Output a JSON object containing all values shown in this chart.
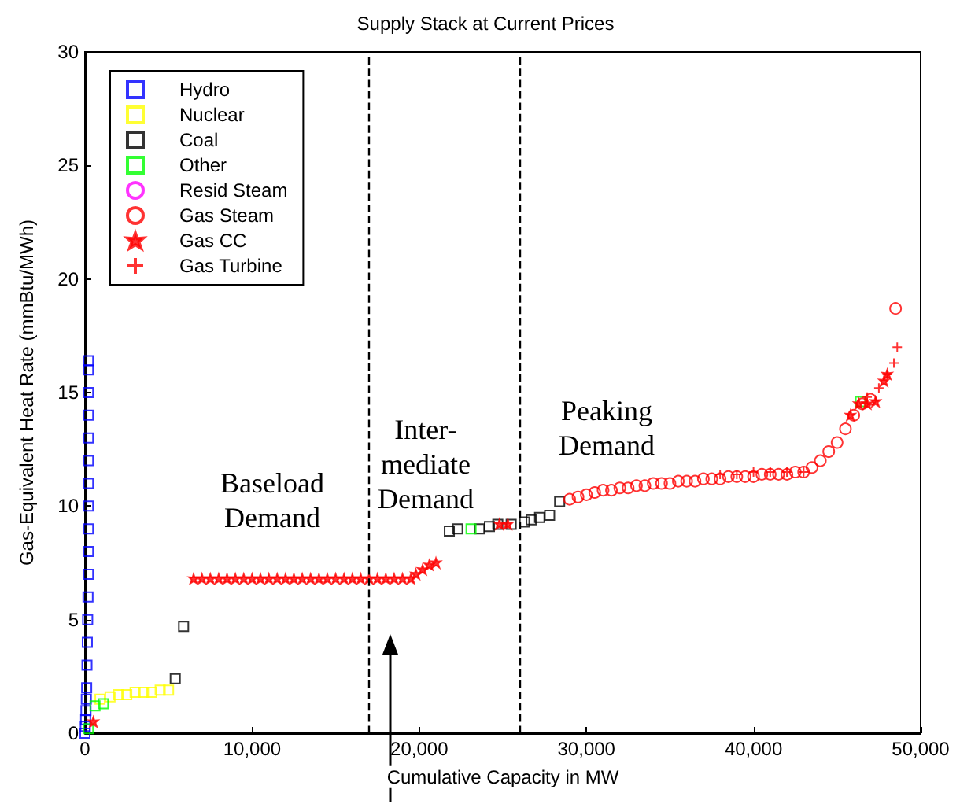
{
  "chart_data": {
    "type": "scatter",
    "title": "Supply Stack at Current Prices",
    "xlabel": "Cumulative Capacity in MW",
    "ylabel": "Gas-Equivalent Heat Rate (mmBtu/MWh)",
    "xlim": [
      0,
      50000
    ],
    "xticks": [
      0,
      {
        "value": 10000,
        "label": "10,000"
      },
      {
        "value": 20000,
        "label": "20,000"
      },
      {
        "value": 30000,
        "label": "30,000"
      },
      {
        "value": 40000,
        "label": "40,000"
      },
      {
        "value": 50000,
        "label": "50,000"
      }
    ],
    "ylim": [
      0,
      30
    ],
    "yticks": [
      0,
      5,
      10,
      15,
      20,
      25,
      30
    ],
    "grid": false,
    "legend": "top left",
    "annotations": [
      "Baseload\nDemand",
      "Inter-\nmediate\nDemand",
      "Peaking\nDemand"
    ],
    "ref_lines": [
      {
        "axis": "x",
        "value": 17000,
        "color": "#000000",
        "line_style": "dashed"
      },
      {
        "axis": "x",
        "value": 26000,
        "color": "#000000",
        "line_style": "dashed"
      }
    ],
    "series": [
      {
        "name": "Hydro",
        "color": "#0000ff",
        "marker": "square",
        "x": [
          0,
          20,
          40,
          60,
          80,
          100,
          120,
          140,
          160,
          180,
          200,
          200,
          200,
          200,
          200,
          200,
          200,
          200,
          200,
          200,
          200
        ],
        "values": [
          0,
          0.3,
          0.6,
          1,
          1.5,
          2,
          3,
          4,
          5,
          6,
          7,
          8,
          9,
          10,
          11,
          12,
          13,
          14,
          15,
          16,
          16.4
        ]
      },
      {
        "name": "Nuclear",
        "color": "#ffff00",
        "marker": "square",
        "x": [
          900,
          1500,
          2000,
          2500,
          3000,
          3500,
          4000,
          4500,
          5000
        ],
        "values": [
          1.5,
          1.6,
          1.7,
          1.7,
          1.8,
          1.8,
          1.8,
          1.9,
          1.9
        ]
      },
      {
        "name": "Coal",
        "color": "#000000",
        "marker": "square",
        "x": [
          5400,
          5900,
          21800,
          22300,
          23600,
          24200,
          24700,
          25500,
          26300,
          26700,
          27200,
          27800,
          28400
        ],
        "values": [
          2.4,
          4.7,
          8.9,
          9.0,
          9.0,
          9.1,
          9.2,
          9.2,
          9.3,
          9.4,
          9.5,
          9.6,
          10.2
        ]
      },
      {
        "name": "Other",
        "color": "#00ff00",
        "marker": "square",
        "x": [
          200,
          600,
          1100,
          23100,
          46400
        ],
        "values": [
          0.2,
          1.2,
          1.3,
          9.0,
          14.6
        ]
      },
      {
        "name": "Resid Steam",
        "color": "#ff00ff",
        "marker": "circle"
      },
      {
        "name": "Gas Steam",
        "color": "#ff0000",
        "marker": "circle",
        "x": [
          29000,
          29500,
          30000,
          30500,
          31000,
          31500,
          32000,
          32500,
          33000,
          33500,
          34000,
          34500,
          35000,
          35500,
          36000,
          36500,
          37000,
          37500,
          38000,
          38500,
          39000,
          39500,
          40000,
          40500,
          41000,
          41500,
          42000,
          42500,
          43000,
          43500,
          44000,
          44500,
          45000,
          45500,
          46000,
          46500,
          47000,
          48500
        ],
        "values": [
          10.3,
          10.4,
          10.5,
          10.6,
          10.7,
          10.7,
          10.8,
          10.8,
          10.9,
          10.9,
          11.0,
          11.0,
          11.0,
          11.1,
          11.1,
          11.1,
          11.2,
          11.2,
          11.2,
          11.3,
          11.3,
          11.3,
          11.3,
          11.4,
          11.4,
          11.4,
          11.4,
          11.5,
          11.5,
          11.7,
          12.0,
          12.4,
          12.8,
          13.4,
          14.0,
          14.5,
          14.7,
          18.7
        ]
      },
      {
        "name": "Gas CC",
        "color": "#ff0000",
        "marker": "star",
        "x": [
          500,
          6500,
          7000,
          7500,
          8000,
          8500,
          9000,
          9500,
          10000,
          10500,
          11000,
          11500,
          12000,
          12500,
          13000,
          13500,
          14000,
          14500,
          15000,
          15500,
          16000,
          16500,
          17000,
          17500,
          18000,
          18500,
          19000,
          19500,
          19800,
          20200,
          20600,
          21000,
          24800,
          25300,
          45800,
          46300,
          46800,
          47300,
          47800,
          48000
        ],
        "values": [
          0.5,
          6.8,
          6.8,
          6.8,
          6.8,
          6.8,
          6.8,
          6.8,
          6.8,
          6.8,
          6.8,
          6.8,
          6.8,
          6.8,
          6.8,
          6.8,
          6.8,
          6.8,
          6.8,
          6.8,
          6.8,
          6.8,
          6.8,
          6.8,
          6.8,
          6.8,
          6.8,
          6.8,
          7.0,
          7.2,
          7.4,
          7.5,
          9.2,
          9.2,
          14.0,
          14.5,
          14.5,
          14.6,
          15.5,
          15.8
        ]
      },
      {
        "name": "Gas Turbine",
        "color": "#ff0000",
        "marker": "cross",
        "x": [
          38000,
          39000,
          40000,
          41000,
          42000,
          43000,
          46800,
          47500,
          48000,
          48400,
          48600
        ],
        "values": [
          11.4,
          11.4,
          11.5,
          11.5,
          11.5,
          11.5,
          14.8,
          15.2,
          15.8,
          16.3,
          17.0
        ]
      }
    ]
  }
}
